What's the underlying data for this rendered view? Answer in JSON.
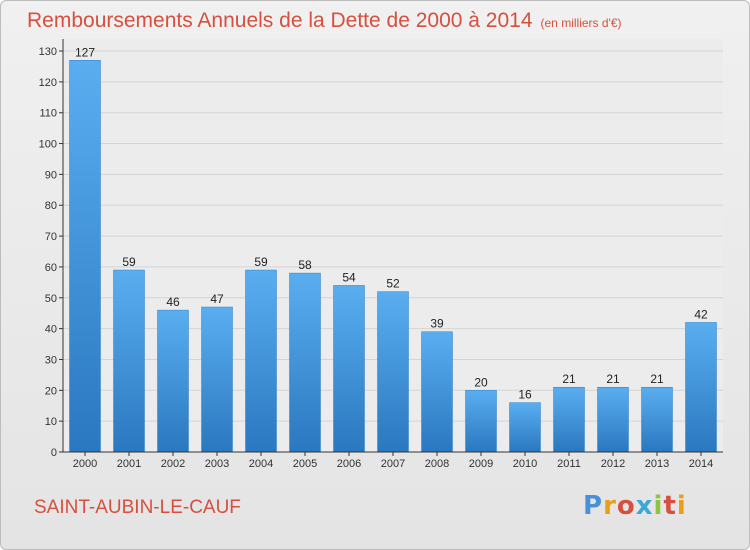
{
  "chart_data": {
    "type": "bar",
    "title": "Remboursements Annuels de la Dette de 2000 à 2014",
    "unit_note": "(en milliers d'€)",
    "categories": [
      "2000",
      "2001",
      "2002",
      "2003",
      "2004",
      "2005",
      "2006",
      "2007",
      "2008",
      "2009",
      "2010",
      "2011",
      "2012",
      "2013",
      "2014"
    ],
    "values": [
      127,
      59,
      46,
      47,
      59,
      58,
      54,
      52,
      39,
      20,
      16,
      21,
      21,
      21,
      42
    ],
    "ylim": [
      0,
      130
    ],
    "yticks": [
      0,
      10,
      20,
      30,
      40,
      50,
      60,
      70,
      80,
      90,
      100,
      110,
      120,
      130
    ],
    "xlabel": "",
    "ylabel": "",
    "grid": true,
    "bar_color": "#3a8fd8",
    "bar_color_light": "#5aaef0",
    "bar_color_dark": "#2a78c0"
  },
  "footer": {
    "commune": "SAINT-AUBIN-LE-CAUF",
    "logo": [
      "P",
      "r",
      "o",
      "x",
      "i",
      "t",
      "i"
    ]
  },
  "colors": {
    "title": "#d6503f",
    "grid": "#d4d4d4",
    "axis": "#333333"
  }
}
